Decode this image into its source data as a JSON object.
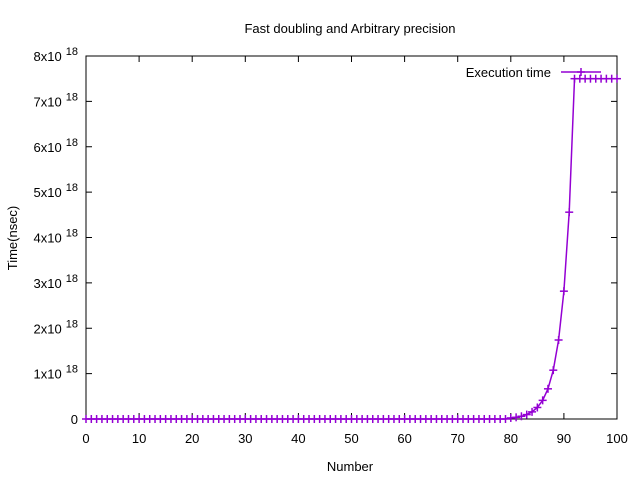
{
  "chart_data": {
    "type": "line",
    "title": "Fast doubling and Arbitrary precision",
    "xlabel": "Number",
    "ylabel": "Time(nsec)",
    "xlim": [
      0,
      100
    ],
    "ylim": [
      0,
      8e+18
    ],
    "grid": false,
    "legend_position": "top-right",
    "x_ticks": [
      0,
      10,
      20,
      30,
      40,
      50,
      60,
      70,
      80,
      90,
      100
    ],
    "x_tick_labels": [
      "0",
      "10",
      "20",
      "30",
      "40",
      "50",
      "60",
      "70",
      "80",
      "90",
      "100"
    ],
    "y_ticks": [
      0,
      1e+18,
      2e+18,
      3e+18,
      4e+18,
      5e+18,
      6e+18,
      7e+18,
      8e+18
    ],
    "y_tick_labels": [
      {
        "base": "0",
        "exp": ""
      },
      {
        "base": "1x10",
        "exp": "18"
      },
      {
        "base": "2x10",
        "exp": "18"
      },
      {
        "base": "3x10",
        "exp": "18"
      },
      {
        "base": "4x10",
        "exp": "18"
      },
      {
        "base": "5x10",
        "exp": "18"
      },
      {
        "base": "6x10",
        "exp": "18"
      },
      {
        "base": "7x10",
        "exp": "18"
      },
      {
        "base": "8x10",
        "exp": "18"
      }
    ],
    "series": [
      {
        "name": "Execution time",
        "color": "#9400d3",
        "marker": "plus",
        "x": [
          0,
          1,
          2,
          3,
          4,
          5,
          6,
          7,
          8,
          9,
          10,
          11,
          12,
          13,
          14,
          15,
          16,
          17,
          18,
          19,
          20,
          21,
          22,
          23,
          24,
          25,
          26,
          27,
          28,
          29,
          30,
          31,
          32,
          33,
          34,
          35,
          36,
          37,
          38,
          39,
          40,
          41,
          42,
          43,
          44,
          45,
          46,
          47,
          48,
          49,
          50,
          51,
          52,
          53,
          54,
          55,
          56,
          57,
          58,
          59,
          60,
          61,
          62,
          63,
          64,
          65,
          66,
          67,
          68,
          69,
          70,
          71,
          72,
          73,
          74,
          75,
          76,
          77,
          78,
          79,
          80,
          81,
          82,
          83,
          84,
          85,
          86,
          87,
          88,
          89,
          90,
          91,
          92,
          93,
          94,
          95,
          96,
          97,
          98,
          99,
          100
        ],
        "y": [
          0,
          0,
          0,
          0,
          0,
          0,
          0,
          0,
          0,
          0,
          0,
          0,
          0,
          0,
          0,
          0,
          0,
          0,
          0,
          0,
          0,
          0,
          0,
          0,
          0,
          0,
          0,
          0,
          0,
          0,
          0,
          0,
          0,
          0,
          0,
          0,
          0,
          0,
          0,
          0,
          0,
          0,
          0,
          0,
          0,
          0,
          0,
          0,
          0,
          0,
          0,
          0,
          0,
          0,
          0,
          0,
          0,
          0,
          0,
          0,
          0,
          0,
          0,
          0,
          0,
          0,
          0,
          0,
          0,
          0,
          0,
          0,
          0,
          0,
          0,
          0,
          0,
          0,
          0,
          0,
          2.3e+16,
          3.7e+16,
          6e+16,
          9.7e+16,
          1.57e+17,
          2.54e+17,
          4.11e+17,
          6.65e+17,
          1.076e+18,
          1.741e+18,
          2.817e+18,
          4.558e+18,
          7.5e+18,
          7.5e+18,
          7.5e+18,
          7.5e+18,
          7.5e+18,
          7.5e+18,
          7.5e+18,
          7.5e+18,
          7.5e+18
        ]
      }
    ]
  }
}
